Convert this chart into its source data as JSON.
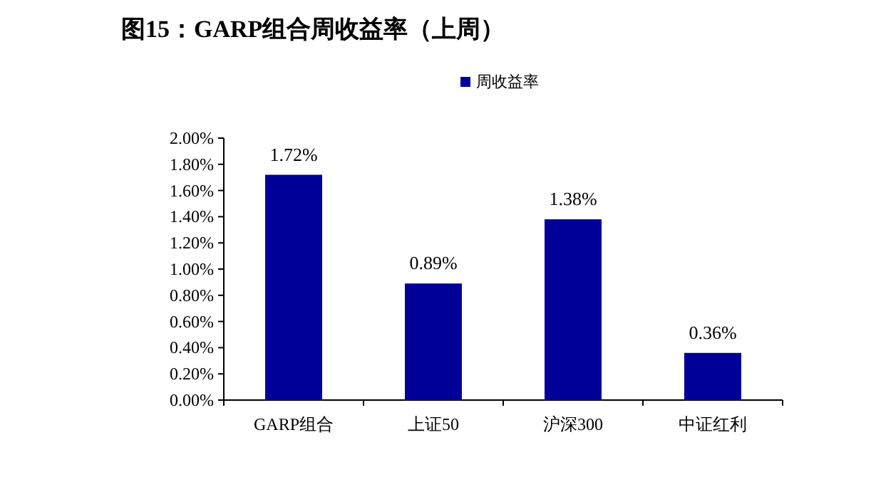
{
  "chart_data": {
    "type": "bar",
    "title": "图15：GARP组合周收益率（上周）",
    "categories": [
      "GARP组合",
      "上证50",
      "沪深300",
      "中证红利"
    ],
    "series": [
      {
        "name": "周收益率",
        "color": "#000099",
        "values": [
          1.72,
          0.89,
          1.38,
          0.36
        ],
        "value_labels": [
          "1.72%",
          "0.89%",
          "1.38%",
          "0.36%"
        ]
      }
    ],
    "ylim": [
      0,
      2
    ],
    "yticks": [
      {
        "value": 0,
        "label": "0.00%"
      },
      {
        "value": 0.2,
        "label": "0.20%"
      },
      {
        "value": 0.4,
        "label": "0.40%"
      },
      {
        "value": 0.6,
        "label": "0.60%"
      },
      {
        "value": 0.8,
        "label": "0.80%"
      },
      {
        "value": 1.0,
        "label": "1.00%"
      },
      {
        "value": 1.2,
        "label": "1.20%"
      },
      {
        "value": 1.4,
        "label": "1.40%"
      },
      {
        "value": 1.6,
        "label": "1.60%"
      },
      {
        "value": 1.8,
        "label": "1.80%"
      },
      {
        "value": 2.0,
        "label": "2.00%"
      }
    ],
    "legend": "top",
    "grid": false
  }
}
